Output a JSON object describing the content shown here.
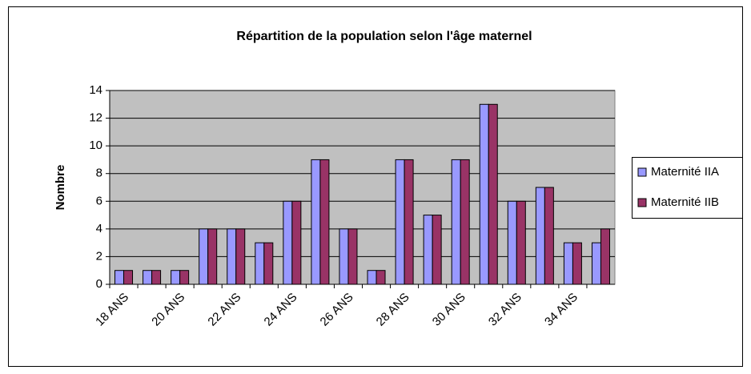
{
  "chart_data": {
    "type": "bar",
    "title": "Répartition de la population selon l'âge maternel",
    "y_label": "Nombre",
    "categories": [
      "18 ANS",
      null,
      "20 ANS",
      null,
      "22 ANS",
      null,
      "24 ANS",
      null,
      "26 ANS",
      null,
      "28 ANS",
      null,
      "30 ANS",
      null,
      "32 ANS",
      null,
      "34 ANS",
      null
    ],
    "series": [
      {
        "name": "Maternité IIA",
        "color": "#9999ff",
        "values": [
          1,
          1,
          1,
          4,
          4,
          3,
          6,
          9,
          4,
          1,
          9,
          5,
          9,
          13,
          6,
          7,
          3,
          3
        ]
      },
      {
        "name": "Maternité IIB",
        "color": "#993366",
        "values": [
          1,
          1,
          1,
          4,
          4,
          3,
          6,
          9,
          4,
          1,
          9,
          5,
          9,
          13,
          6,
          7,
          3,
          4
        ]
      }
    ],
    "ylim": [
      0,
      14
    ],
    "yticks": [
      0,
      2,
      4,
      6,
      8,
      10,
      12,
      14
    ],
    "grid": true,
    "legend": "right"
  }
}
